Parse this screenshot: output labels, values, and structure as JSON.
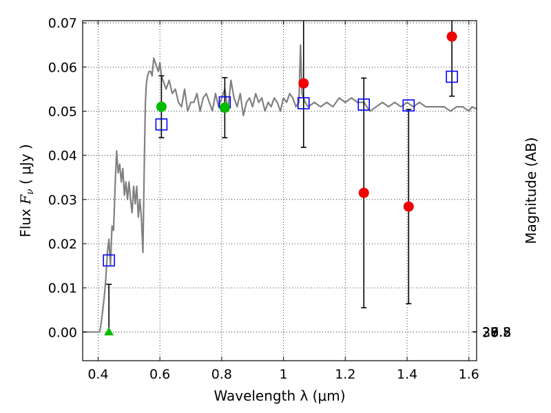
{
  "chart_data": {
    "type": "scatter",
    "xlabel": "Wavelength  λ (μm)",
    "ylabel_prefix": "Flux ",
    "ylabel_math": "F",
    "ylabel_math_sub": "ν",
    "ylabel_unit": " ( μJy )",
    "ylabel_right": "Magnitude (AB)",
    "xlim": [
      0.35,
      1.625
    ],
    "ylim": [
      -0.0065,
      0.0705
    ],
    "grid": true,
    "x_ticks": [
      {
        "value": 0.4,
        "label": "0.4"
      },
      {
        "value": 0.6,
        "label": "0.6"
      },
      {
        "value": 0.8,
        "label": "0.8"
      },
      {
        "value": 1.0,
        "label": "1"
      },
      {
        "value": 1.2,
        "label": "1.2"
      },
      {
        "value": 1.4,
        "label": "1.4"
      },
      {
        "value": 1.6,
        "label": "1.6"
      }
    ],
    "y_ticks": [
      {
        "value": 0.0,
        "label": "0.00"
      },
      {
        "value": 0.01,
        "label": "0.01"
      },
      {
        "value": 0.02,
        "label": "0.02"
      },
      {
        "value": 0.03,
        "label": "0.03"
      },
      {
        "value": 0.04,
        "label": "0.04"
      },
      {
        "value": 0.05,
        "label": "0.05"
      },
      {
        "value": 0.06,
        "label": "0.06"
      },
      {
        "value": 0.07,
        "label": "0.07"
      }
    ],
    "right_ticks": [
      {
        "mag": 26.8,
        "label": "26.8"
      },
      {
        "mag": 27.0,
        "label": "27"
      },
      {
        "mag": 27.2,
        "label": "27.2"
      },
      {
        "mag": 27.5,
        "label": "27.5"
      },
      {
        "mag": 28.0,
        "label": "28"
      },
      {
        "mag": 28.5,
        "label": "28.5"
      },
      {
        "mag": 29.0,
        "label": "29"
      },
      {
        "mag": 30.0,
        "label": "30"
      }
    ],
    "series": [
      {
        "kind": "model-spectrum",
        "color": "#808080",
        "x": [
          0.35,
          0.405,
          0.41,
          0.415,
          0.42,
          0.425,
          0.43,
          0.435,
          0.44,
          0.445,
          0.45,
          0.455,
          0.46,
          0.465,
          0.47,
          0.475,
          0.48,
          0.485,
          0.49,
          0.495,
          0.5,
          0.505,
          0.51,
          0.515,
          0.52,
          0.525,
          0.53,
          0.535,
          0.54,
          0.545,
          0.55,
          0.553,
          0.556,
          0.56,
          0.565,
          0.57,
          0.575,
          0.58,
          0.585,
          0.59,
          0.595,
          0.6,
          0.605,
          0.61,
          0.615,
          0.62,
          0.625,
          0.63,
          0.64,
          0.65,
          0.66,
          0.67,
          0.68,
          0.69,
          0.7,
          0.71,
          0.72,
          0.73,
          0.74,
          0.75,
          0.76,
          0.77,
          0.78,
          0.79,
          0.8,
          0.81,
          0.82,
          0.83,
          0.84,
          0.85,
          0.86,
          0.87,
          0.88,
          0.89,
          0.9,
          0.91,
          0.92,
          0.93,
          0.94,
          0.95,
          0.96,
          0.97,
          0.98,
          0.99,
          1.0,
          1.01,
          1.02,
          1.03,
          1.04,
          1.05,
          1.055,
          1.06,
          1.065,
          1.07,
          1.08,
          1.1,
          1.12,
          1.14,
          1.16,
          1.18,
          1.2,
          1.22,
          1.24,
          1.26,
          1.28,
          1.3,
          1.32,
          1.34,
          1.36,
          1.38,
          1.4,
          1.42,
          1.44,
          1.46,
          1.48,
          1.5,
          1.52,
          1.54,
          1.56,
          1.58,
          1.6,
          1.61,
          1.625
        ],
        "y": [
          0.0,
          0.0,
          0.002,
          0.005,
          0.008,
          0.012,
          0.018,
          0.021,
          0.015,
          0.024,
          0.023,
          0.033,
          0.041,
          0.036,
          0.038,
          0.034,
          0.037,
          0.031,
          0.034,
          0.03,
          0.034,
          0.03,
          0.027,
          0.033,
          0.029,
          0.033,
          0.026,
          0.03,
          0.026,
          0.018,
          0.04,
          0.052,
          0.056,
          0.058,
          0.059,
          0.059,
          0.058,
          0.062,
          0.061,
          0.06,
          0.059,
          0.061,
          0.058,
          0.057,
          0.056,
          0.055,
          0.056,
          0.057,
          0.054,
          0.055,
          0.052,
          0.051,
          0.055,
          0.05,
          0.052,
          0.052,
          0.054,
          0.05,
          0.053,
          0.054,
          0.052,
          0.05,
          0.054,
          0.051,
          0.053,
          0.055,
          0.05,
          0.057,
          0.053,
          0.051,
          0.054,
          0.049,
          0.052,
          0.053,
          0.051,
          0.054,
          0.052,
          0.053,
          0.05,
          0.052,
          0.051,
          0.053,
          0.052,
          0.05,
          0.053,
          0.052,
          0.054,
          0.053,
          0.051,
          0.052,
          0.065,
          0.054,
          0.053,
          0.052,
          0.051,
          0.052,
          0.051,
          0.052,
          0.051,
          0.053,
          0.052,
          0.053,
          0.052,
          0.052,
          0.05,
          0.051,
          0.052,
          0.051,
          0.052,
          0.051,
          0.052,
          0.051,
          0.052,
          0.051,
          0.051,
          0.051,
          0.051,
          0.05,
          0.051,
          0.051,
          0.05,
          0.051,
          0.0505
        ]
      },
      {
        "kind": "model-photometry",
        "marker": "open-square",
        "color": "#0000ff",
        "x": [
          0.435,
          0.605,
          0.81,
          1.065,
          1.26,
          1.405,
          1.545
        ],
        "y": [
          0.0162,
          0.047,
          0.052,
          0.0518,
          0.0515,
          0.0513,
          0.0578
        ]
      },
      {
        "kind": "detections",
        "marker": "filled-circle",
        "color": "#00bb00",
        "x": [
          0.605,
          0.81
        ],
        "y": [
          0.051,
          0.0508
        ],
        "err": [
          0.007,
          0.0068
        ]
      },
      {
        "kind": "detections",
        "marker": "filled-circle",
        "color": "#ee0000",
        "x": [
          1.065,
          1.26,
          1.405,
          1.545
        ],
        "y": [
          0.0563,
          0.0315,
          0.0284,
          0.0669
        ],
        "err": [
          0.0145,
          0.026,
          0.022,
          0.0135
        ]
      },
      {
        "kind": "upper-limit",
        "marker": "filled-triangle",
        "color": "#00bb00",
        "x": [
          0.435
        ],
        "y": [
          0.0
        ],
        "err_up": [
          0.0108
        ]
      }
    ]
  }
}
